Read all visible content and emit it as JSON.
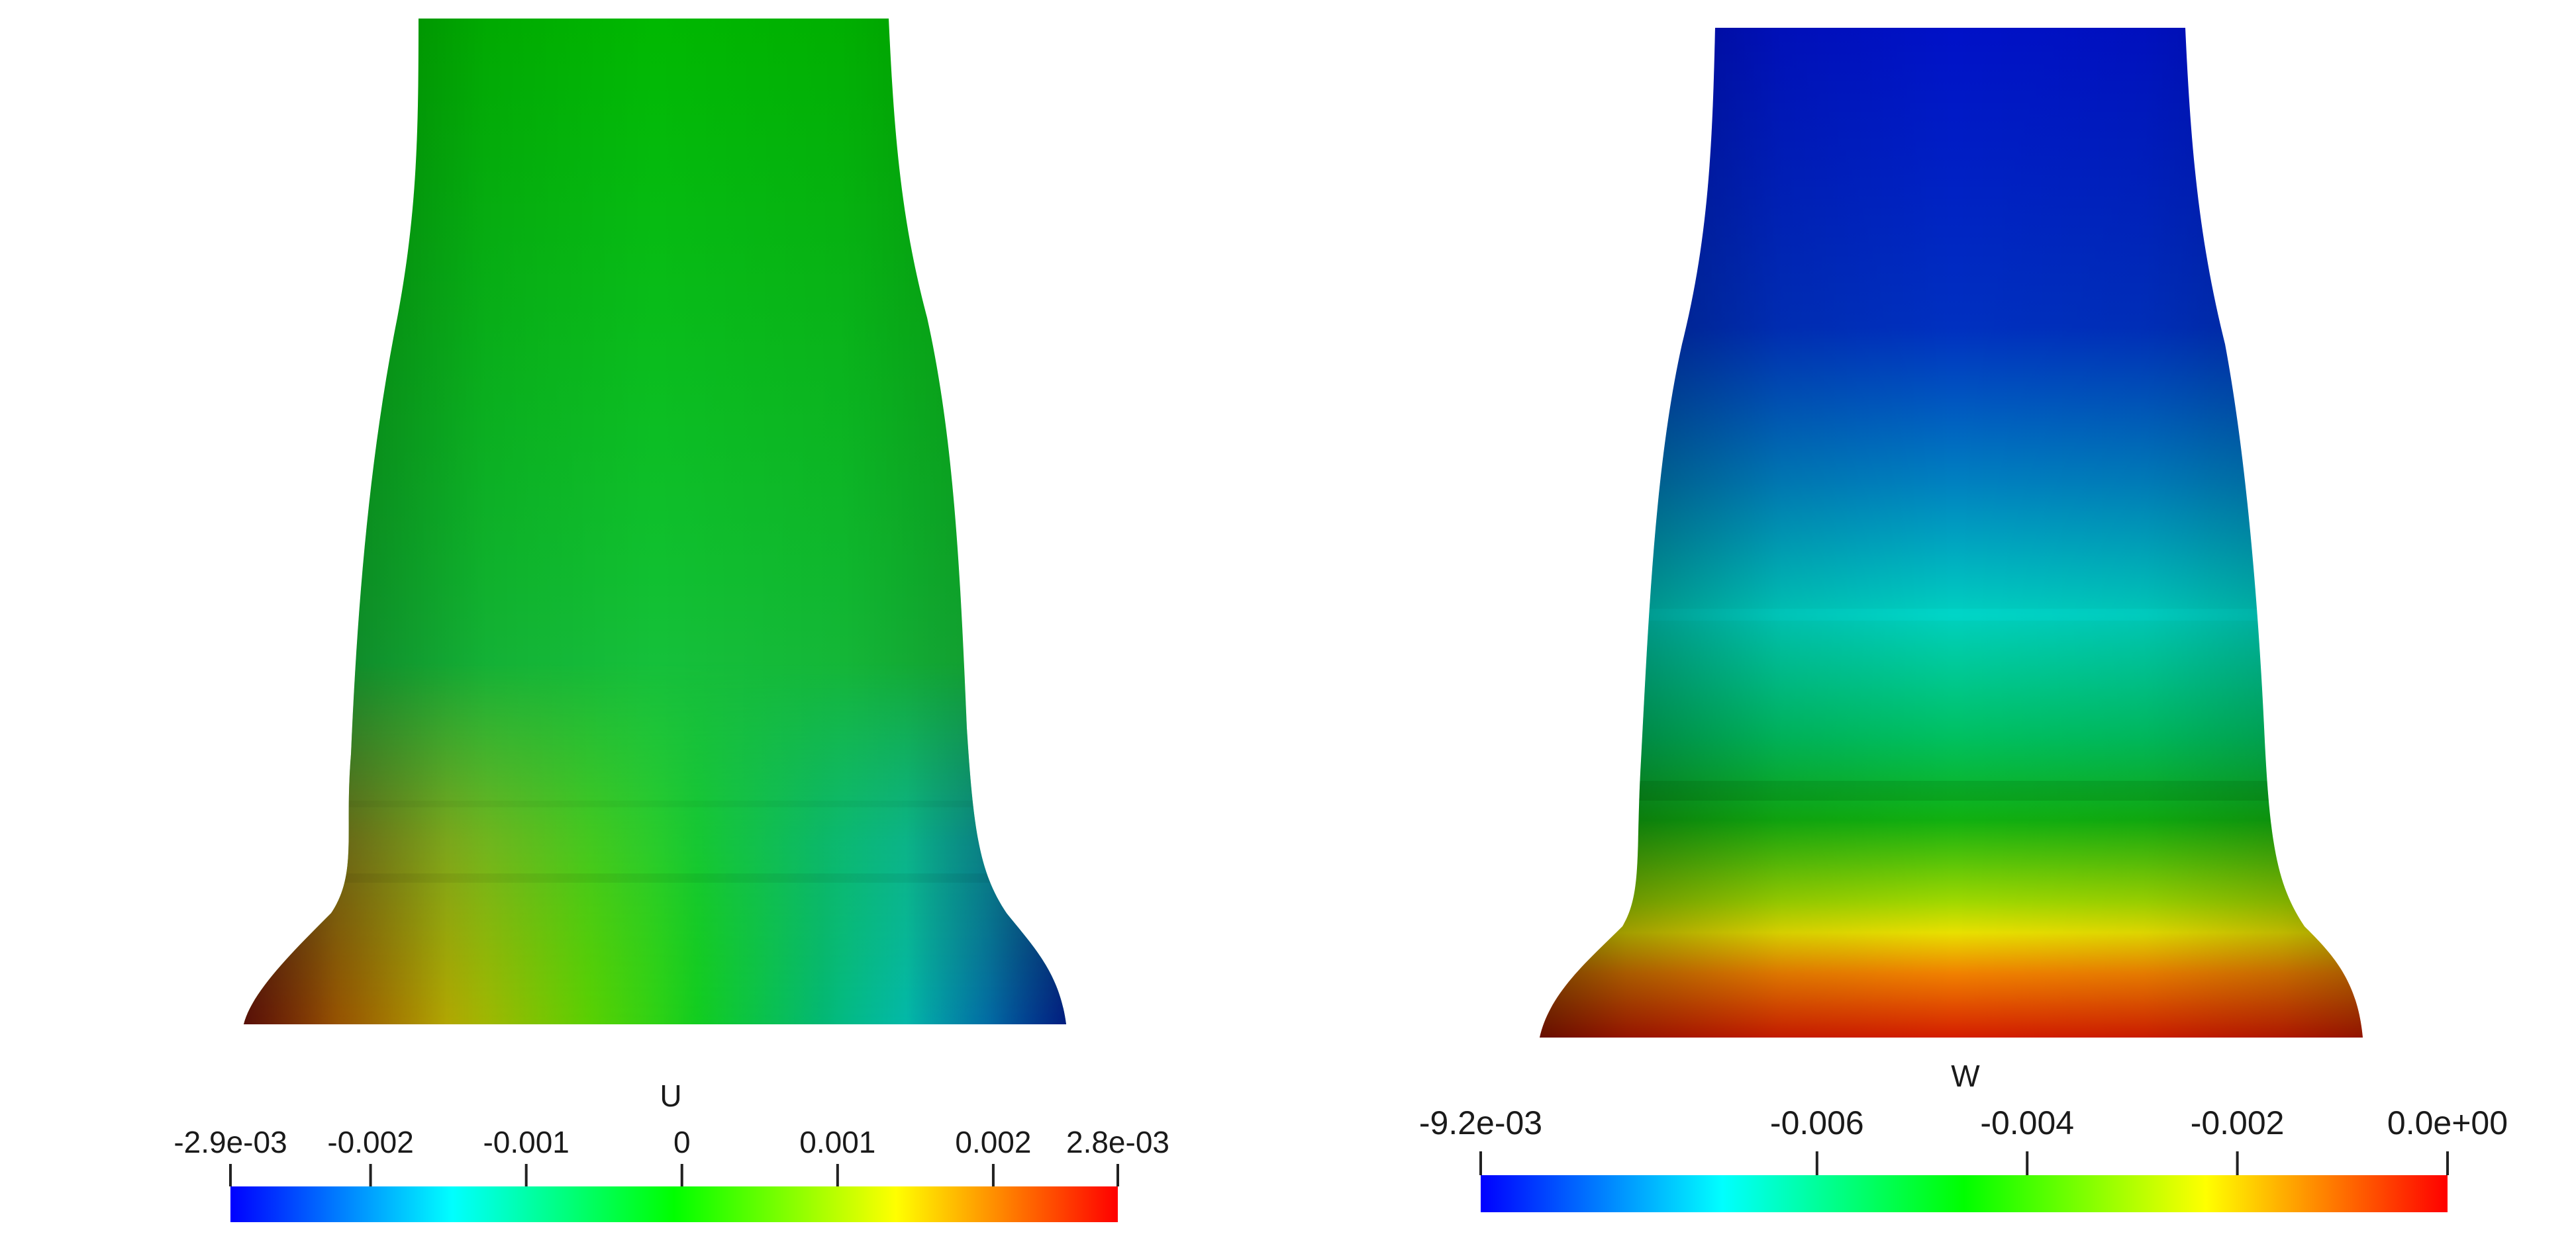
{
  "figure": {
    "left_panel": {
      "field_name": "U",
      "colorbar": {
        "ticks": [
          "-2.9e-03",
          "-0.002",
          "-0.001",
          "0",
          "0.001",
          "0.002",
          "2.8e-03"
        ],
        "tick_values": [
          -0.0029,
          -0.002,
          -0.001,
          0,
          0.001,
          0.002,
          0.0028
        ],
        "range": [
          -0.0029,
          0.0028
        ],
        "colors": [
          "#0000ff",
          "#00ffff",
          "#00ff00",
          "#ffff00",
          "#ff0000"
        ]
      }
    },
    "right_panel": {
      "field_name": "W",
      "colorbar": {
        "ticks": [
          "-9.2e-03",
          "-0.006",
          "-0.004",
          "-0.002",
          "0.0e+00"
        ],
        "tick_values": [
          -0.0092,
          -0.006,
          -0.004,
          -0.002,
          0.0
        ],
        "range": [
          -0.0092,
          0.0
        ],
        "colors": [
          "#0000ff",
          "#00ffff",
          "#00ff00",
          "#ffff00",
          "#ff0000"
        ]
      }
    }
  }
}
